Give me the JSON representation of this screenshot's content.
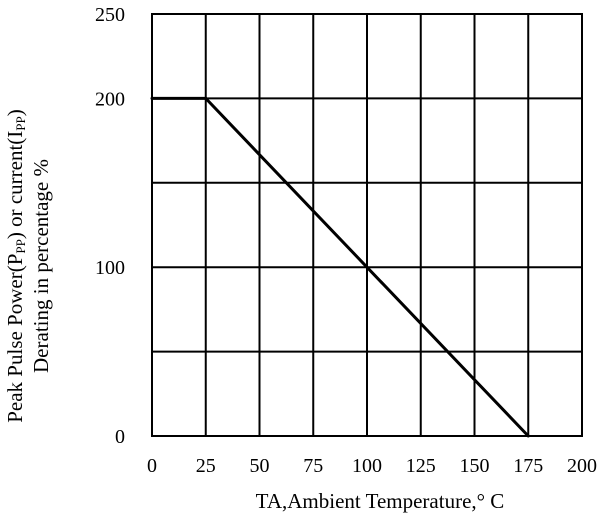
{
  "chart_data": {
    "type": "line",
    "title": "",
    "xlabel": "TA,Ambient Temperature,° C",
    "ylabel_line1": "Peak Pulse Power(P",
    "ylabel_sub1": "PP",
    "ylabel_mid": ") or current(I",
    "ylabel_sub2": "PP",
    "ylabel_end": ")",
    "ylabel_line2": "Derating in percentage %",
    "xlim": [
      0,
      200
    ],
    "ylim": [
      0,
      250
    ],
    "x_ticks": [
      0,
      25,
      50,
      75,
      100,
      125,
      150,
      175,
      200
    ],
    "x_tick_labels": [
      "0",
      "25",
      "50",
      "75",
      "100",
      "125",
      "150",
      "175",
      "200"
    ],
    "y_gridlines": [
      0,
      50,
      100,
      150,
      200,
      250
    ],
    "y_ticks": [
      0,
      100,
      200,
      250
    ],
    "y_tick_labels": [
      "0",
      "100",
      "200",
      "250"
    ],
    "grid": true,
    "series": [
      {
        "x": [
          0,
          25,
          175
        ],
        "y": [
          200,
          200,
          0
        ]
      }
    ]
  }
}
